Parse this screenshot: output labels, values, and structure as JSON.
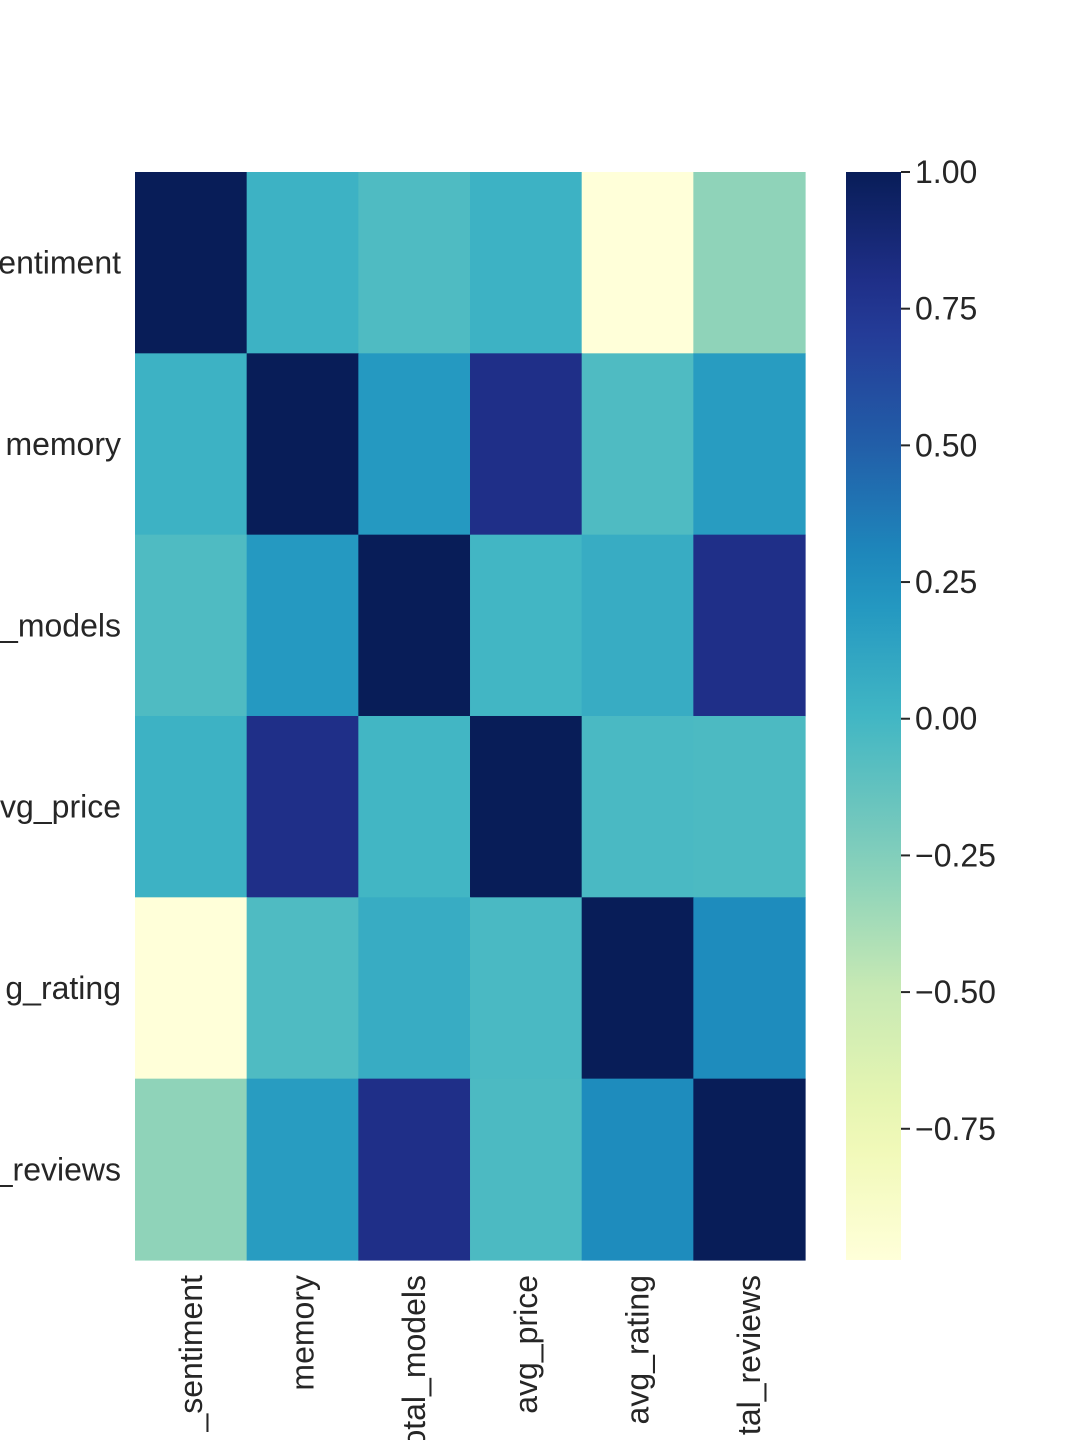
{
  "chart_data": {
    "type": "heatmap",
    "rows": [
      "category_sentiment",
      "memory",
      "total_models",
      "avg_price",
      "avg_rating",
      "total_reviews"
    ],
    "columns": [
      "category_sentiment",
      "memory",
      "total_models",
      "avg_price",
      "avg_rating",
      "total_reviews"
    ],
    "row_tick_labels": [
      "entiment",
      "memory",
      "_models",
      "vg_price",
      "g_rating",
      "_reviews"
    ],
    "column_tick_labels": [
      "_sentiment",
      "memory",
      "otal_models",
      "avg_price",
      "avg_rating",
      "tal_reviews"
    ],
    "matrix": [
      [
        1.0,
        0.03,
        -0.05,
        0.03,
        -0.99,
        -0.3
      ],
      [
        0.03,
        1.0,
        0.2,
        0.8,
        -0.05,
        0.18
      ],
      [
        -0.05,
        0.2,
        1.0,
        0.0,
        0.07,
        0.8
      ],
      [
        0.03,
        0.8,
        0.0,
        1.0,
        -0.03,
        -0.04
      ],
      [
        -0.99,
        -0.05,
        0.07,
        -0.03,
        1.0,
        0.28
      ],
      [
        -0.3,
        0.18,
        0.8,
        -0.04,
        0.28,
        1.0
      ]
    ],
    "colorscale": "YlGnBu",
    "vmin": -0.99,
    "vmax": 1.0,
    "colorbar": {
      "ticks": [
        1.0,
        0.75,
        0.5,
        0.25,
        0.0,
        -0.25,
        -0.5,
        -0.75
      ],
      "tick_labels": [
        "1.00",
        "0.75",
        "0.50",
        "0.25",
        "0.00",
        "−0.25",
        "−0.50",
        "−0.75"
      ],
      "placement": "right"
    },
    "title": "",
    "xlabel": "",
    "ylabel": ""
  }
}
